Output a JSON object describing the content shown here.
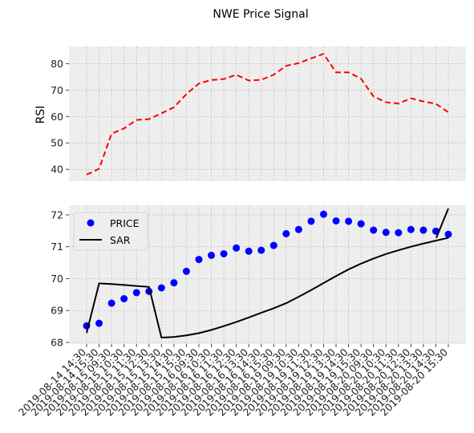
{
  "chart_data": {
    "type": "line",
    "title": "NWE Price Signal",
    "x": [
      "2019-08-14 14:30",
      "2019-08-14 15:30",
      "2019-08-15 09:30",
      "2019-08-15 10:30",
      "2019-08-15 11:30",
      "2019-08-15 12:30",
      "2019-08-15 13:30",
      "2019-08-15 14:30",
      "2019-08-15 15:30",
      "2019-08-16 09:30",
      "2019-08-16 10:30",
      "2019-08-16 11:30",
      "2019-08-16 12:30",
      "2019-08-16 13:30",
      "2019-08-16 14:30",
      "2019-08-16 15:30",
      "2019-08-19 09:30",
      "2019-08-19 10:30",
      "2019-08-19 11:30",
      "2019-08-19 12:30",
      "2019-08-19 13:30",
      "2019-08-19 14:30",
      "2019-08-19 15:30",
      "2019-08-20 09:30",
      "2019-08-20 10:30",
      "2019-08-20 11:30",
      "2019-08-20 12:30",
      "2019-08-20 13:30",
      "2019-08-20 14:30",
      "2019-08-20 15:30"
    ],
    "panels": [
      {
        "ylabel": "RSI",
        "ylim": [
          35.5,
          86.5
        ],
        "yticks": [
          40,
          50,
          60,
          70,
          80
        ],
        "grid": true,
        "series": [
          {
            "kind": "line",
            "style": "dashed",
            "color": "#ff0000",
            "values": [
              38,
              40.2,
              53.5,
              55.5,
              58.7,
              59,
              61.2,
              63.5,
              68.5,
              72.5,
              73.8,
              74.2,
              75.8,
              73.6,
              73.9,
              75.8,
              79.2,
              80.2,
              82,
              83.7,
              76.7,
              76.7,
              74.3,
              67.6,
              65.4,
              64.9,
              66.9,
              65.7,
              64.8,
              61.6
            ]
          }
        ]
      },
      {
        "ylabel": "",
        "ylim": [
          67.95,
          72.3
        ],
        "yticks": [
          68,
          69,
          70,
          71,
          72
        ],
        "grid": true,
        "legend": "top-left",
        "series": [
          {
            "name": "PRICE",
            "kind": "scatter",
            "color": "#0000ff",
            "values": [
              68.52,
              68.6,
              69.23,
              69.37,
              69.56,
              69.6,
              69.71,
              69.87,
              70.23,
              70.6,
              70.73,
              70.78,
              70.96,
              70.86,
              70.89,
              71.04,
              71.41,
              71.54,
              71.8,
              72.02,
              71.81,
              71.8,
              71.72,
              71.52,
              71.45,
              71.44,
              71.54,
              71.52,
              71.49,
              71.39
            ]
          },
          {
            "name": "SAR",
            "kind": "line",
            "color": "#000000",
            "values": [
              68.3,
              69.85,
              69.83,
              69.8,
              69.77,
              69.74,
              68.15,
              68.17,
              68.22,
              68.29,
              68.39,
              68.51,
              68.64,
              68.78,
              68.93,
              69.07,
              69.23,
              69.43,
              69.64,
              69.86,
              70.08,
              70.29,
              70.47,
              70.63,
              70.77,
              70.89,
              71.0,
              71.1,
              71.19,
              71.28
            ]
          }
        ],
        "sar_tail": {
          "x_index": 29,
          "values": [
            71.28,
            72.2
          ]
        }
      }
    ]
  }
}
